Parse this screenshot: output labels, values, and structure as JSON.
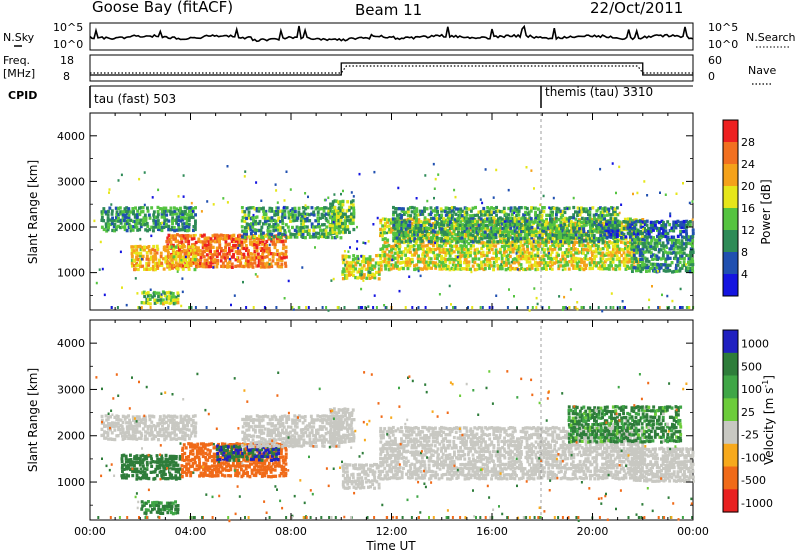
{
  "header": {
    "station": "Goose Bay (fitACF)",
    "beam": "Beam 11",
    "date": "22/Oct/2011"
  },
  "strips": {
    "nsky": {
      "left_label": "N.Sky",
      "left_ticks": [
        "10^5",
        "10^0"
      ],
      "right_label": "N.Search",
      "right_ticks": [
        "10^5",
        "10^0"
      ]
    },
    "freq": {
      "left_label": "Freq.",
      "left_unit": "[MHz]",
      "left_ticks": [
        "18",
        "8"
      ],
      "right_label": "Nave",
      "right_ticks": [
        "60",
        "0"
      ]
    },
    "cpid": {
      "label": "CPID",
      "segments": [
        "tau (fast) 503",
        "themis (tau) 3310"
      ]
    }
  },
  "colors": {
    "power_scale": [
      "#1515e0",
      "#2050b0",
      "#2e8b57",
      "#55c440",
      "#e6e61a",
      "#f5a21a",
      "#f27020",
      "#ee2020"
    ],
    "velocity_scale": [
      "#2020c0",
      "#2e7d3a",
      "#3fa646",
      "#6ccc3a",
      "#c8c8c2",
      "#f7a91c",
      "#f06a18",
      "#e82020"
    ],
    "ground_scatter": "#c8c8c2"
  },
  "chart_data": [
    {
      "type": "heatmap",
      "panel": "power",
      "xlabel": "Time UT",
      "ylabel": "Slant Range [km]",
      "x_ticks": [
        "00:00",
        "04:00",
        "08:00",
        "12:00",
        "16:00",
        "20:00",
        "00:00"
      ],
      "xlim_hours": [
        0,
        24
      ],
      "y_ticks": [
        1000,
        2000,
        3000,
        4000
      ],
      "ylim_km": [
        180,
        4500
      ],
      "colorbar": {
        "label": "Power [dB]",
        "ticks": [
          "28",
          "24",
          "20",
          "16",
          "12",
          "8",
          "4"
        ],
        "range": [
          0,
          30
        ]
      },
      "cpid_change_hour": 18.0,
      "regions": [
        {
          "t": [
            0.4,
            4.2
          ],
          "r": [
            1950,
            2500
          ],
          "value": 10
        },
        {
          "t": [
            3.0,
            7.8
          ],
          "r": [
            1150,
            1900
          ],
          "value": 24
        },
        {
          "t": [
            1.6,
            4.2
          ],
          "r": [
            1100,
            1650
          ],
          "value": 19
        },
        {
          "t": [
            6.0,
            10.0
          ],
          "r": [
            1800,
            2500
          ],
          "value": 11
        },
        {
          "t": [
            9.5,
            10.5
          ],
          "r": [
            1900,
            2650
          ],
          "value": 13
        },
        {
          "t": [
            10.0,
            11.5
          ],
          "r": [
            900,
            1450
          ],
          "value": 16
        },
        {
          "t": [
            11.5,
            22.0
          ],
          "r": [
            1100,
            2250
          ],
          "value": 17
        },
        {
          "t": [
            12.0,
            21.0
          ],
          "r": [
            1700,
            2500
          ],
          "value": 11
        },
        {
          "t": [
            2.0,
            3.5
          ],
          "r": [
            350,
            650
          ],
          "value": 14
        },
        {
          "t": [
            21.5,
            24.0
          ],
          "r": [
            1050,
            1800
          ],
          "value": 10
        },
        {
          "t": [
            20.5,
            24.0
          ],
          "r": [
            1800,
            2200
          ],
          "value": 7
        }
      ]
    },
    {
      "type": "heatmap",
      "panel": "velocity",
      "xlabel": "Time UT",
      "ylabel": "Slant Range [km]",
      "x_ticks": [
        "00:00",
        "04:00",
        "08:00",
        "12:00",
        "16:00",
        "20:00",
        "00:00"
      ],
      "xlim_hours": [
        0,
        24
      ],
      "y_ticks": [
        1000,
        2000,
        3000,
        4000
      ],
      "ylim_km": [
        180,
        4500
      ],
      "colorbar": {
        "label": "Velocity [m s^-1]",
        "ticks": [
          "1000",
          "500",
          "100",
          "25",
          "-25",
          "-100",
          "-500",
          "-1000"
        ],
        "range": [
          -1000,
          1000
        ]
      },
      "cpid_change_hour": 18.0,
      "regions": [
        {
          "t": [
            0.4,
            4.2
          ],
          "r": [
            1950,
            2500
          ],
          "value": 0
        },
        {
          "t": [
            1.2,
            3.6
          ],
          "r": [
            1100,
            1650
          ],
          "value": 300
        },
        {
          "t": [
            3.6,
            7.8
          ],
          "r": [
            1150,
            1900
          ],
          "value": -300
        },
        {
          "t": [
            5.0,
            7.5
          ],
          "r": [
            1500,
            1850
          ],
          "value": 500
        },
        {
          "t": [
            6.0,
            10.0
          ],
          "r": [
            1800,
            2500
          ],
          "value": 0
        },
        {
          "t": [
            9.5,
            10.5
          ],
          "r": [
            1900,
            2650
          ],
          "value": 0
        },
        {
          "t": [
            10.0,
            11.5
          ],
          "r": [
            900,
            1450
          ],
          "value": 0
        },
        {
          "t": [
            11.5,
            22.0
          ],
          "r": [
            1100,
            2250
          ],
          "value": 0
        },
        {
          "t": [
            2.0,
            3.5
          ],
          "r": [
            350,
            650
          ],
          "value": 150
        },
        {
          "t": [
            21.5,
            24.0
          ],
          "r": [
            1050,
            1800
          ],
          "value": 0
        },
        {
          "t": [
            19.0,
            23.5
          ],
          "r": [
            1900,
            2700
          ],
          "value": 120
        }
      ]
    }
  ]
}
